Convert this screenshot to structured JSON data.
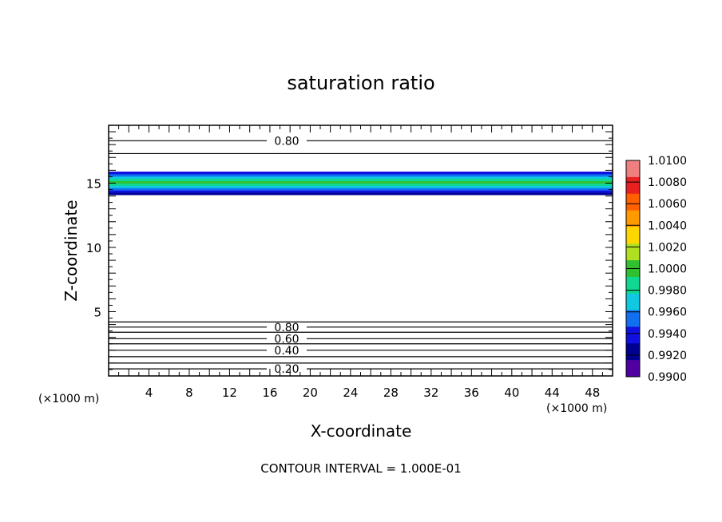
{
  "chart_data": {
    "type": "contour",
    "title": "saturation ratio",
    "xlabel": "X-coordinate",
    "ylabel": "Z-coordinate",
    "x_unit_left": "(×1000 m)",
    "x_unit_right": "(×1000 m)",
    "xlim": [
      0,
      50
    ],
    "ylim": [
      0,
      19.5
    ],
    "x_ticks": [
      4,
      8,
      12,
      16,
      20,
      24,
      28,
      32,
      36,
      40,
      44,
      48
    ],
    "y_ticks": [
      5,
      10,
      15
    ],
    "footer": "CONTOUR INTERVAL = 1.000E-01",
    "colorbar": {
      "labels": [
        "1.0100",
        "1.0080",
        "1.0060",
        "1.0040",
        "1.0020",
        "1.0000",
        "0.9980",
        "0.9960",
        "0.9940",
        "0.9920",
        "0.9900"
      ],
      "colors": [
        "#f08080",
        "#e82020",
        "#ff6000",
        "#ff9900",
        "#ffd700",
        "#b0e020",
        "#30c030",
        "#10d890",
        "#10c8e0",
        "#1070f0",
        "#1010e0",
        "#000090",
        "#5000a0"
      ]
    },
    "shaded_band": {
      "z_range": [
        14.1,
        15.9
      ],
      "colors_bottom_to_top": [
        "#000090",
        "#1010e0",
        "#1070f0",
        "#10c8e0",
        "#10d890",
        "#30c030",
        "#10d890",
        "#10c8e0",
        "#1070f0",
        "#1010e0"
      ]
    },
    "contours": [
      {
        "label": "0.80",
        "z": 18.3
      },
      {
        "z": 17.3
      },
      {
        "z": 4.2
      },
      {
        "label": "0.80",
        "z": 3.8
      },
      {
        "z": 3.4
      },
      {
        "label": "0.60",
        "z": 2.9
      },
      {
        "z": 2.5
      },
      {
        "label": "0.40",
        "z": 2.0
      },
      {
        "z": 1.5
      },
      {
        "z": 1.0
      },
      {
        "label": "0.20",
        "z": 0.55
      }
    ]
  }
}
